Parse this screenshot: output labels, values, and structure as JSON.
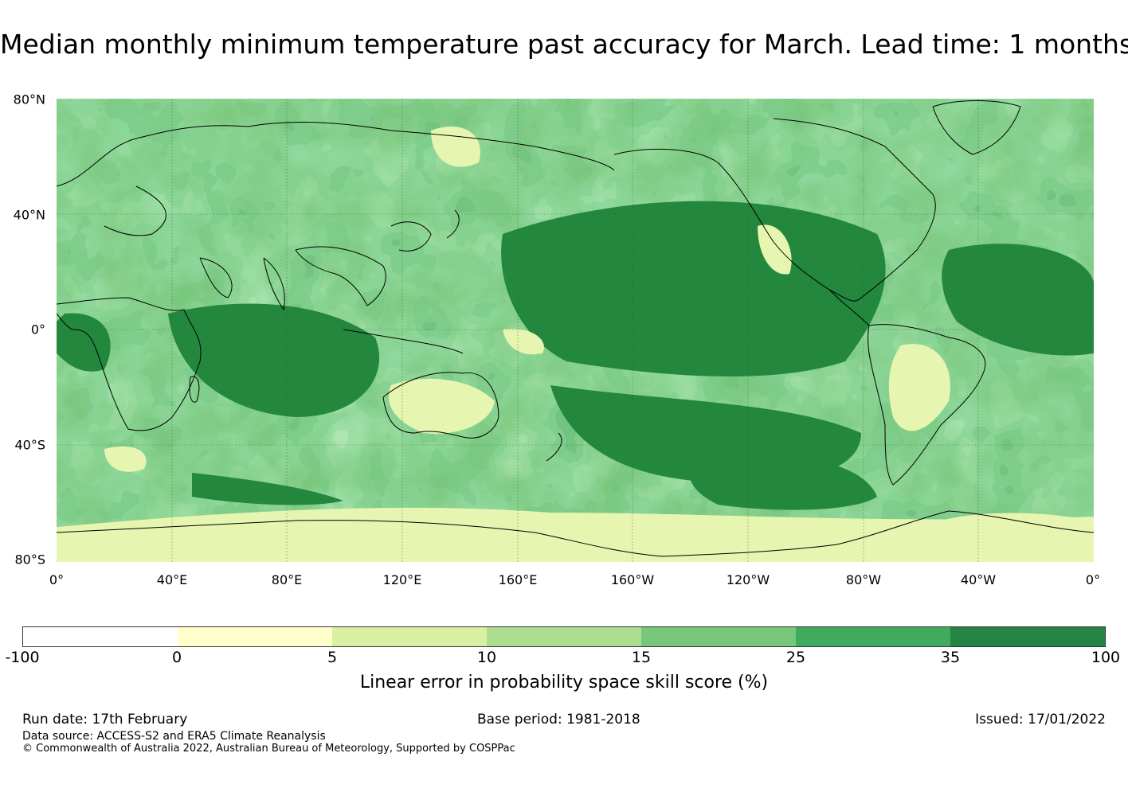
{
  "title": "Median monthly minimum temperature past accuracy for March. Lead time: 1 months",
  "map": {
    "lat_labels": [
      "80°N",
      "40°N",
      "0°",
      "40°S",
      "80°S"
    ],
    "lon_labels": [
      "0°",
      "40°E",
      "80°E",
      "120°E",
      "160°E",
      "160°W",
      "120°W",
      "80°W",
      "40°W",
      "0°"
    ],
    "ocean_color": "#23873e"
  },
  "colorbar": {
    "ticks": [
      "-100",
      "0",
      "5",
      "10",
      "15",
      "25",
      "35",
      "100"
    ],
    "colors": [
      "#ffffff",
      "#ffffcc",
      "#d9f0a3",
      "#addd8e",
      "#78c679",
      "#41ab5d",
      "#238443"
    ],
    "label": "Linear error in probability space skill score (%)"
  },
  "footer": {
    "run_date": "Run date: 17th February",
    "base_period": "Base period: 1981-2018",
    "issued": "Issued: 17/01/2022",
    "data_source": "Data source: ACCESS-S2 and ERA5 Climate Reanalysis",
    "copyright": "© Commonwealth of Australia 2022, Australian Bureau of Meteorology, Supported by COSPPac"
  }
}
